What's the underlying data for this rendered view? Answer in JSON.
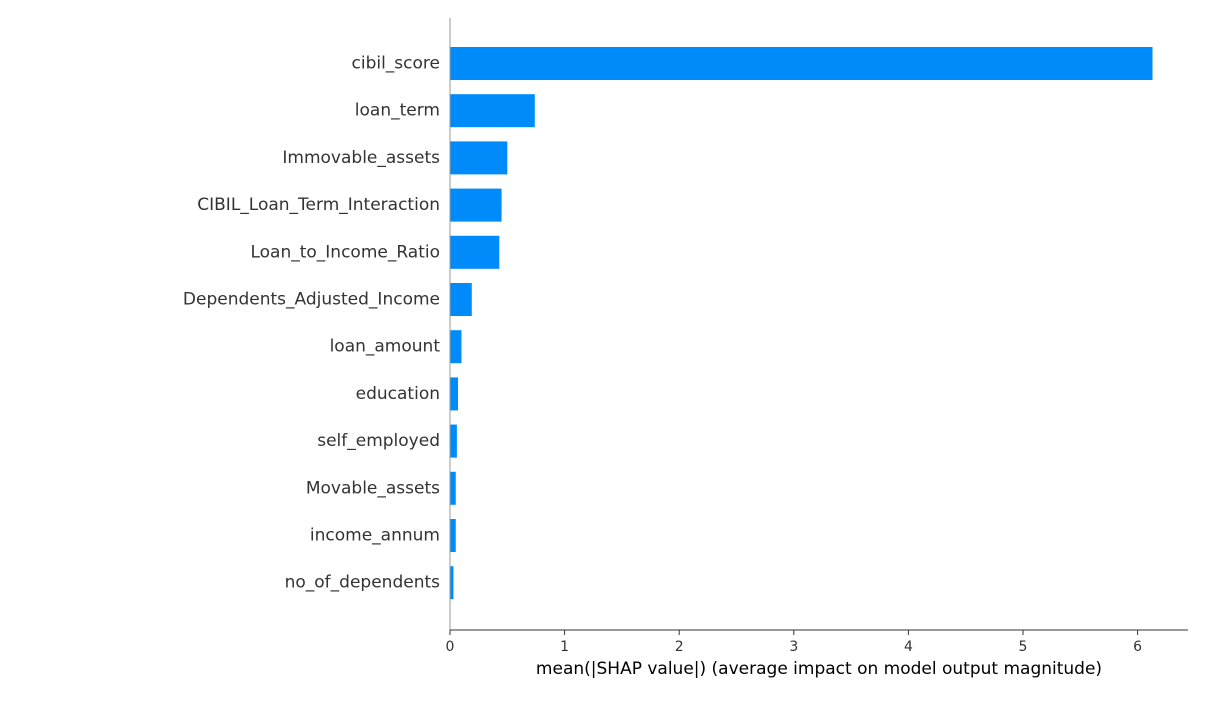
{
  "chart_data": {
    "type": "bar",
    "orientation": "horizontal",
    "title": "",
    "xlabel": "mean(|SHAP value|) (average impact on model output magnitude)",
    "ylabel": "",
    "categories": [
      "cibil_score",
      "loan_term",
      "Immovable_assets",
      "CIBIL_Loan_Term_Interaction",
      "Loan_to_Income_Ratio",
      "Dependents_Adjusted_Income",
      "loan_amount",
      "education",
      "self_employed",
      "Movable_assets",
      "income_annum",
      "no_of_dependents"
    ],
    "values": [
      6.13,
      0.74,
      0.5,
      0.45,
      0.43,
      0.19,
      0.1,
      0.07,
      0.06,
      0.05,
      0.05,
      0.03
    ],
    "xlim": [
      0,
      6.43
    ],
    "xticks": [
      "0",
      "1",
      "2",
      "3",
      "4",
      "5",
      "6"
    ],
    "grid": false,
    "legend": "none",
    "bar_color": "#008bfb"
  }
}
